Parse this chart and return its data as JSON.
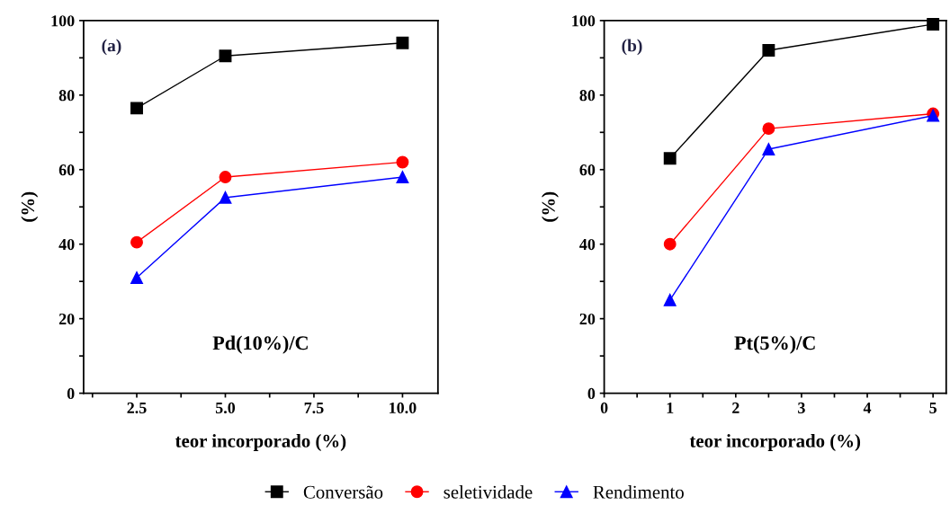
{
  "chart_data": [
    {
      "type": "line",
      "xlabel": "teor incorporado (%)",
      "ylabel": "(%)",
      "annotations": [
        "(a)",
        "Pd(10%)/C"
      ],
      "x": [
        2.5,
        5.0,
        10.0
      ],
      "series": [
        {
          "name": "Conversão",
          "color": "#000000",
          "marker": "square",
          "values": [
            76.5,
            90.5,
            94
          ]
        },
        {
          "name": "seletividade",
          "color": "#ff0000",
          "marker": "circle",
          "values": [
            40.5,
            58,
            62
          ]
        },
        {
          "name": "Rendimento",
          "color": "#0000ff",
          "marker": "triangle",
          "values": [
            31,
            52.5,
            58
          ]
        }
      ],
      "xlim": [
        1.0,
        11.0
      ],
      "ylim": [
        0,
        100
      ],
      "xticks": [
        {
          "value": 1.25,
          "label": null
        },
        {
          "value": 2.5,
          "label": "2.5"
        },
        {
          "value": 3.75,
          "label": null
        },
        {
          "value": 5.0,
          "label": "5.0"
        },
        {
          "value": 6.25,
          "label": null
        },
        {
          "value": 7.5,
          "label": "7.5"
        },
        {
          "value": 8.75,
          "label": null
        },
        {
          "value": 10.0,
          "label": "10.0"
        }
      ],
      "yticks": [
        0,
        {
          "value": 10,
          "label": null
        },
        20,
        {
          "value": 30,
          "label": null
        },
        40,
        {
          "value": 50,
          "label": null
        },
        60,
        {
          "value": 70,
          "label": null
        },
        80,
        {
          "value": 90,
          "label": null
        },
        100
      ],
      "grid": false,
      "legend": "bottom",
      "line_style": "solid"
    },
    {
      "type": "line",
      "xlabel": "teor incorporado (%)",
      "ylabel": "(%)",
      "annotations": [
        "(b)",
        "Pt(5%)/C"
      ],
      "x": [
        1,
        2.5,
        5
      ],
      "series": [
        {
          "color": "#000000",
          "marker": "square",
          "values": [
            63,
            92,
            99
          ]
        },
        {
          "color": "#ff0000",
          "marker": "circle",
          "values": [
            40,
            71,
            75
          ]
        },
        {
          "color": "#0000ff",
          "marker": "triangle",
          "values": [
            25,
            65.5,
            74.5
          ]
        }
      ],
      "xlim": [
        0,
        5.2
      ],
      "ylim": [
        0,
        100
      ],
      "xticks": [
        0,
        {
          "value": 0.5,
          "label": null
        },
        1,
        {
          "value": 1.5,
          "label": null
        },
        2,
        {
          "value": 2.5,
          "label": null
        },
        3,
        {
          "value": 3.5,
          "label": null
        },
        4,
        {
          "value": 4.5,
          "label": null
        },
        5
      ],
      "yticks": [
        0,
        {
          "value": 10,
          "label": null
        },
        20,
        {
          "value": 30,
          "label": null
        },
        40,
        {
          "value": 50,
          "label": null
        },
        60,
        {
          "value": 70,
          "label": null
        },
        80,
        {
          "value": 90,
          "label": null
        },
        100
      ],
      "grid": false,
      "line_style": "solid"
    }
  ]
}
